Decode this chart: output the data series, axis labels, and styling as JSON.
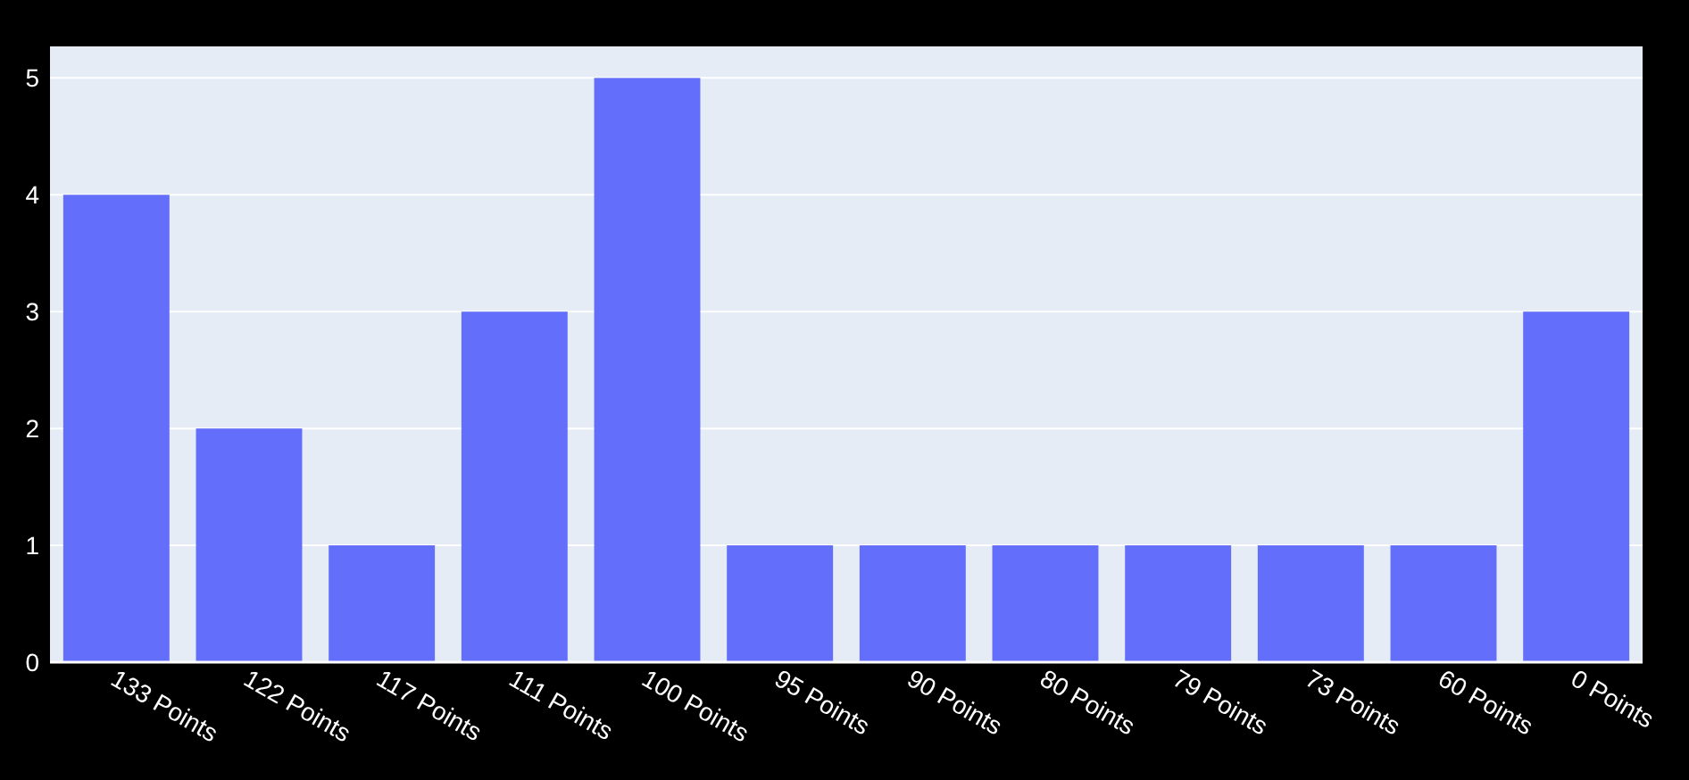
{
  "chart_data": {
    "type": "bar",
    "categories": [
      "133 Points",
      "122 Points",
      "117 Points",
      "111 Points",
      "100 Points",
      "95 Points",
      "90 Points",
      "80 Points",
      "79 Points",
      "73 Points",
      "60 Points",
      "0 Points"
    ],
    "values": [
      4,
      2,
      1,
      3,
      5,
      1,
      1,
      1,
      1,
      1,
      1,
      3
    ],
    "color": "#636efa",
    "ylim": [
      0,
      5.27
    ],
    "yticks": [
      0,
      1,
      2,
      3,
      4,
      5
    ],
    "grid": "y"
  }
}
